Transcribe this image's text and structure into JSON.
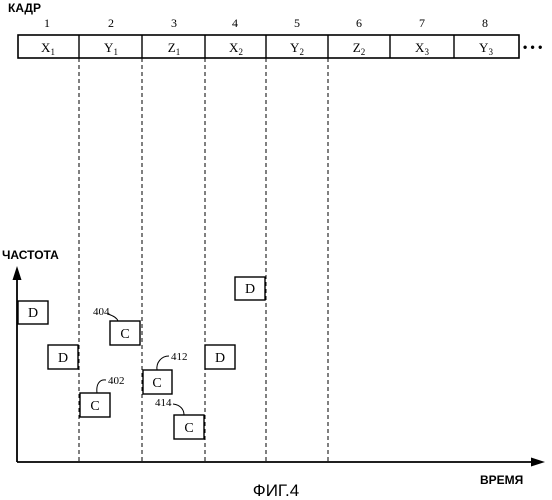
{
  "header": {
    "label": "КАДР"
  },
  "frames": [
    {
      "number": "1",
      "base": "X",
      "sub": "1"
    },
    {
      "number": "2",
      "base": "Y",
      "sub": "1"
    },
    {
      "number": "3",
      "base": "Z",
      "sub": "1"
    },
    {
      "number": "4",
      "base": "X",
      "sub": "2"
    },
    {
      "number": "5",
      "base": "Y",
      "sub": "2"
    },
    {
      "number": "6",
      "base": "Z",
      "sub": "2"
    },
    {
      "number": "7",
      "base": "X",
      "sub": "3"
    },
    {
      "number": "8",
      "base": "Y",
      "sub": "3"
    }
  ],
  "ellipsis": "• • •",
  "axes": {
    "y_label": "ЧАСТОТА",
    "x_label": "ВРЕМЯ"
  },
  "blocks": [
    {
      "id": "d1",
      "text": "D"
    },
    {
      "id": "d2",
      "text": "D"
    },
    {
      "id": "c402",
      "text": "C",
      "ref": "402"
    },
    {
      "id": "c404",
      "text": "C",
      "ref": "404"
    },
    {
      "id": "c412",
      "text": "C",
      "ref": "412"
    },
    {
      "id": "c414",
      "text": "C",
      "ref": "414"
    },
    {
      "id": "d3",
      "text": "D"
    },
    {
      "id": "d4",
      "text": "D"
    }
  ],
  "caption": "ФИГ.4"
}
